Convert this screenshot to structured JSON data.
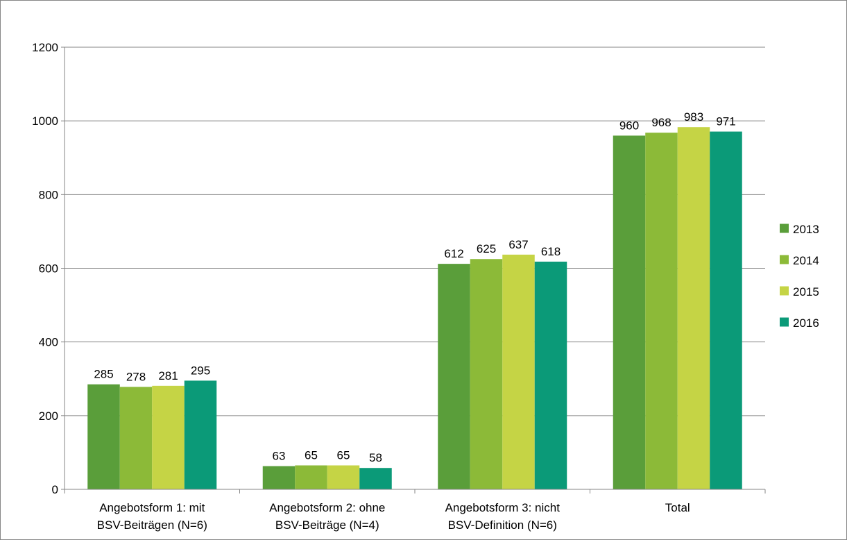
{
  "chart_data": {
    "type": "bar",
    "categories": [
      [
        "Angebotsform 1: mit",
        "BSV-Beiträgen (N=6)"
      ],
      [
        "Angebotsform 2: ohne",
        "BSV-Beiträge (N=4)"
      ],
      [
        "Angebotsform 3: nicht",
        "BSV-Definition (N=6)"
      ],
      [
        "Total"
      ]
    ],
    "series": [
      {
        "name": "2013",
        "color": "#5a9e3a",
        "values": [
          285,
          63,
          612,
          960
        ]
      },
      {
        "name": "2014",
        "color": "#8cba38",
        "values": [
          278,
          65,
          625,
          968
        ]
      },
      {
        "name": "2015",
        "color": "#c5d445",
        "values": [
          281,
          65,
          637,
          983
        ]
      },
      {
        "name": "2016",
        "color": "#0b9a78",
        "values": [
          295,
          58,
          618,
          971
        ]
      }
    ],
    "yticks": [
      "0",
      "200",
      "400",
      "600",
      "800",
      "1000",
      "1200"
    ],
    "ylim": [
      0,
      1200
    ],
    "grid": true,
    "legend_position": "right",
    "title": "",
    "xlabel": "",
    "ylabel": ""
  }
}
